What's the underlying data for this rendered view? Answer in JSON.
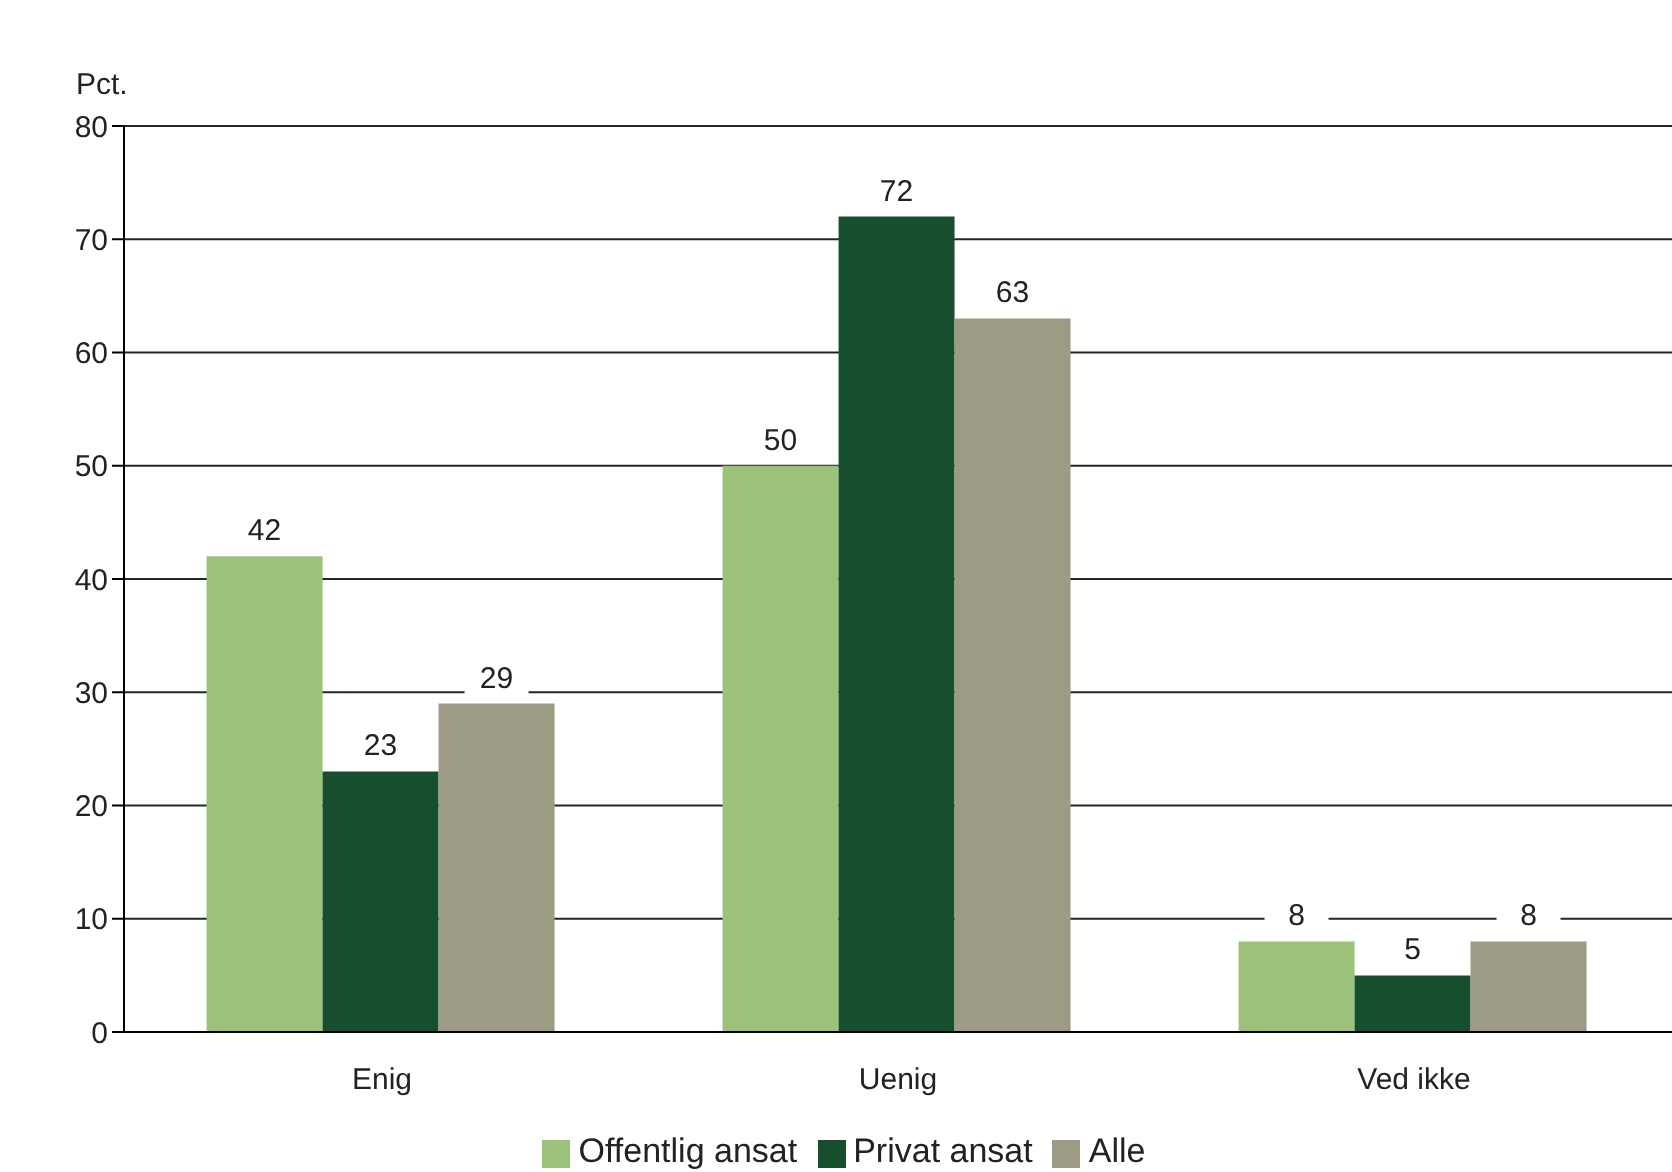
{
  "chart_data": {
    "type": "bar",
    "ylabel": "Pct.",
    "categories": [
      "Enig",
      "Uenig",
      "Ved ikke"
    ],
    "series": [
      {
        "name": "Offentlig ansat",
        "color": "#9bc17a",
        "values": [
          42,
          50,
          8
        ]
      },
      {
        "name": "Privat ansat",
        "color": "#174f2e",
        "values": [
          23,
          72,
          5
        ]
      },
      {
        "name": "Alle",
        "color": "#9e9b85",
        "values": [
          29,
          63,
          8
        ]
      }
    ],
    "ylim": [
      0,
      80
    ],
    "yticks": [
      0,
      10,
      20,
      30,
      40,
      50,
      60,
      70,
      80
    ],
    "grid": "y",
    "legend": "bottom",
    "data_labels": true
  }
}
